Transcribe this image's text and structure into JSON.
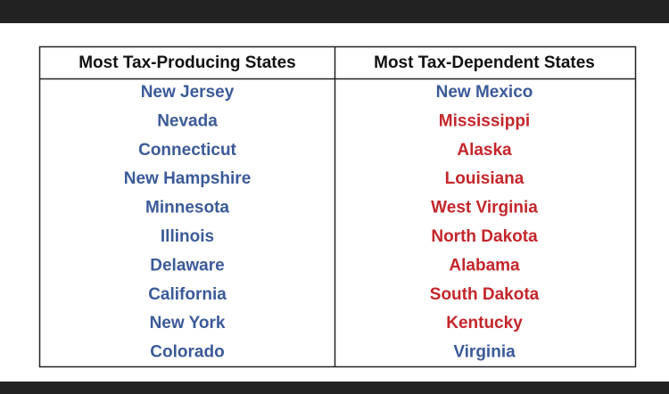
{
  "table": {
    "columns": [
      {
        "header": "Most Tax-Producing States",
        "rows": [
          {
            "text": "New Jersey",
            "color": "#3b5a98"
          },
          {
            "text": "Nevada",
            "color": "#3b5a98"
          },
          {
            "text": "Connecticut",
            "color": "#3b5a98"
          },
          {
            "text": "New Hampshire",
            "color": "#3b5a98"
          },
          {
            "text": "Minnesota",
            "color": "#3b5a98"
          },
          {
            "text": "Illinois",
            "color": "#3b5a98"
          },
          {
            "text": "Delaware",
            "color": "#3b5a98"
          },
          {
            "text": "California",
            "color": "#3b5a98"
          },
          {
            "text": "New York",
            "color": "#3b5a98"
          },
          {
            "text": "Colorado",
            "color": "#3b5a98"
          }
        ]
      },
      {
        "header": "Most Tax-Dependent States",
        "rows": [
          {
            "text": "New Mexico",
            "color": "#3b5a98"
          },
          {
            "text": "Mississippi",
            "color": "#c3262b"
          },
          {
            "text": "Alaska",
            "color": "#c3262b"
          },
          {
            "text": "Louisiana",
            "color": "#c3262b"
          },
          {
            "text": "West Virginia",
            "color": "#c3262b"
          },
          {
            "text": "North Dakota",
            "color": "#c3262b"
          },
          {
            "text": "Alabama",
            "color": "#c3262b"
          },
          {
            "text": "South Dakota",
            "color": "#c3262b"
          },
          {
            "text": "Kentucky",
            "color": "#c3262b"
          },
          {
            "text": "Virginia",
            "color": "#3b5a98"
          }
        ]
      }
    ]
  }
}
